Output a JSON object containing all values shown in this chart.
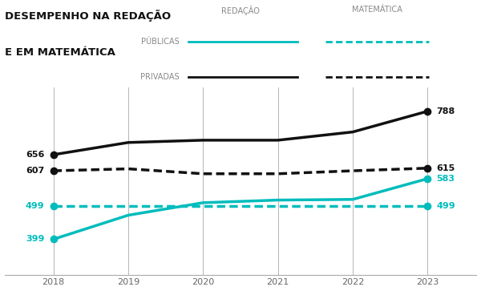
{
  "title_line1": "DESEMPENHO NA REDAÇÃO",
  "title_line2": "E EM MATEMÁTICA",
  "years": [
    2018,
    2019,
    2020,
    2021,
    2022,
    2023
  ],
  "privadas_redacao": [
    656,
    693,
    700,
    700,
    725,
    788
  ],
  "publicas_redacao": [
    399,
    472,
    510,
    518,
    520,
    583
  ],
  "privadas_mat": [
    607,
    613,
    598,
    598,
    607,
    615
  ],
  "publicas_mat": [
    499,
    499,
    499,
    499,
    499,
    499
  ],
  "color_teal": "#00BCBC",
  "color_black": "#111111",
  "bg_color": "#ffffff",
  "label_privadas_redacao_start": "656",
  "label_privadas_mat_start": "607",
  "label_publicas_mat_start": "499",
  "label_publicas_redacao_start": "399",
  "label_privadas_redacao_end": "788",
  "label_privadas_mat_end": "615",
  "label_publicas_redacao_end": "583",
  "label_publicas_mat_end": "499",
  "ylim_min": 290,
  "ylim_max": 860,
  "legend_col1_header": "REDAÇÃO",
  "legend_col2_header": "MATEMÁTICA",
  "legend_row1": "PÚBLICAS",
  "legend_row2": "PRIVADAS"
}
